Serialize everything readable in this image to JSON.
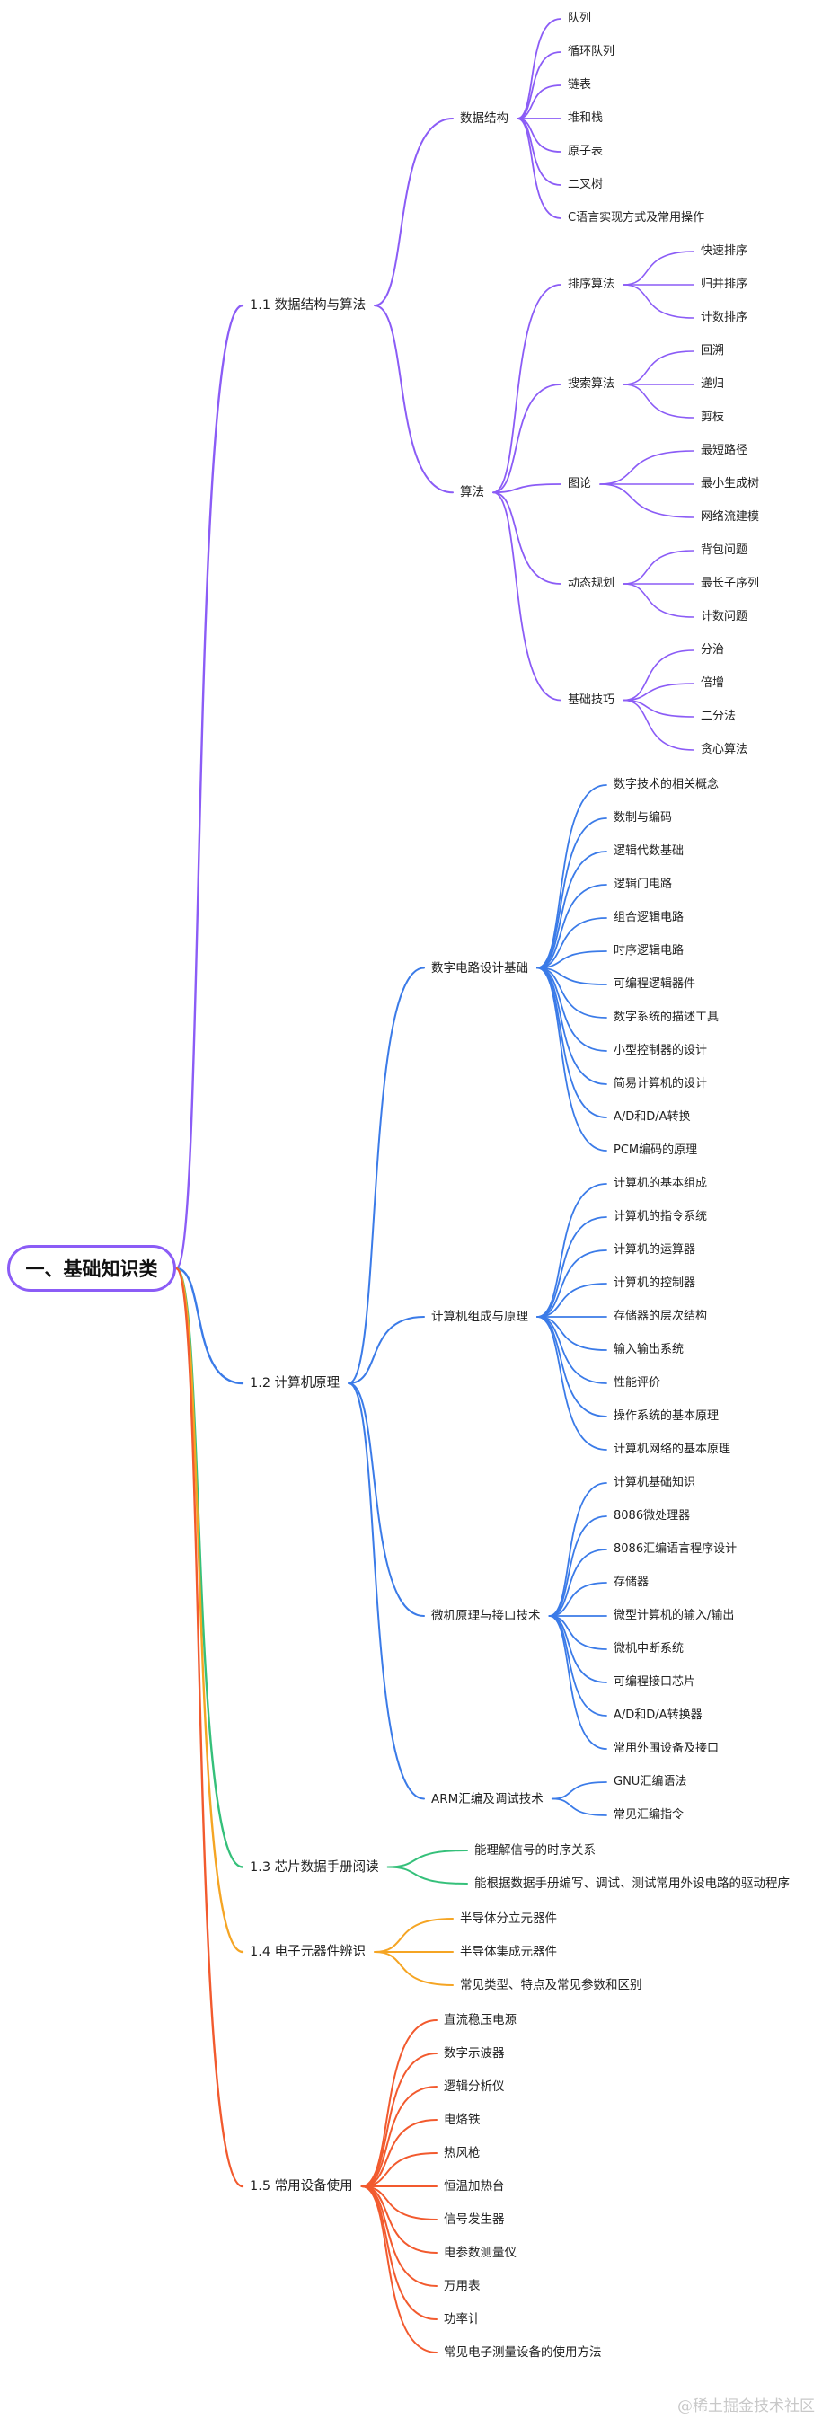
{
  "root": "一、基础知识类",
  "watermark": "@稀土掘金技术社区",
  "colors": {
    "purple": "#8b5cf6",
    "blue": "#3b7be8",
    "green": "#35c07a",
    "orange": "#f5a524",
    "red": "#f25a2e"
  },
  "sections": [
    {
      "label": "1.1 数据结构与算法",
      "color": "purple",
      "children": [
        {
          "label": "数据结构",
          "children": [
            {
              "label": "队列"
            },
            {
              "label": "循环队列"
            },
            {
              "label": "链表"
            },
            {
              "label": "堆和栈"
            },
            {
              "label": "原子表"
            },
            {
              "label": "二叉树"
            },
            {
              "label": "C语言实现方式及常用操作"
            }
          ]
        },
        {
          "label": "算法",
          "children": [
            {
              "label": "排序算法",
              "children": [
                {
                  "label": "快速排序"
                },
                {
                  "label": "归并排序"
                },
                {
                  "label": "计数排序"
                }
              ]
            },
            {
              "label": "搜索算法",
              "children": [
                {
                  "label": "回溯"
                },
                {
                  "label": "递归"
                },
                {
                  "label": "剪枝"
                }
              ]
            },
            {
              "label": "图论",
              "children": [
                {
                  "label": "最短路径"
                },
                {
                  "label": "最小生成树"
                },
                {
                  "label": "网络流建模"
                }
              ]
            },
            {
              "label": "动态规划",
              "children": [
                {
                  "label": "背包问题"
                },
                {
                  "label": "最长子序列"
                },
                {
                  "label": "计数问题"
                }
              ]
            },
            {
              "label": "基础技巧",
              "children": [
                {
                  "label": "分治"
                },
                {
                  "label": "倍增"
                },
                {
                  "label": "二分法"
                },
                {
                  "label": "贪心算法"
                }
              ]
            }
          ]
        }
      ]
    },
    {
      "label": "1.2 计算机原理",
      "color": "blue",
      "children": [
        {
          "label": "数字电路设计基础",
          "children": [
            {
              "label": "数字技术的相关概念"
            },
            {
              "label": "数制与编码"
            },
            {
              "label": "逻辑代数基础"
            },
            {
              "label": "逻辑门电路"
            },
            {
              "label": "组合逻辑电路"
            },
            {
              "label": "时序逻辑电路"
            },
            {
              "label": "可编程逻辑器件"
            },
            {
              "label": "数字系统的描述工具"
            },
            {
              "label": "小型控制器的设计"
            },
            {
              "label": "简易计算机的设计"
            },
            {
              "label": "A/D和D/A转换"
            },
            {
              "label": "PCM编码的原理"
            }
          ]
        },
        {
          "label": "计算机组成与原理",
          "children": [
            {
              "label": "计算机的基本组成"
            },
            {
              "label": "计算机的指令系统"
            },
            {
              "label": "计算机的运算器"
            },
            {
              "label": "计算机的控制器"
            },
            {
              "label": "存储器的层次结构"
            },
            {
              "label": "输入输出系统"
            },
            {
              "label": "性能评价"
            },
            {
              "label": "操作系统的基本原理"
            },
            {
              "label": "计算机网络的基本原理"
            }
          ]
        },
        {
          "label": "微机原理与接口技术",
          "children": [
            {
              "label": "计算机基础知识"
            },
            {
              "label": "8086微处理器"
            },
            {
              "label": "8086汇编语言程序设计"
            },
            {
              "label": "存储器"
            },
            {
              "label": "微型计算机的输入/输出"
            },
            {
              "label": "微机中断系统"
            },
            {
              "label": "可编程接口芯片"
            },
            {
              "label": "A/D和D/A转换器"
            },
            {
              "label": "常用外围设备及接口"
            }
          ]
        },
        {
          "label": "ARM汇编及调试技术",
          "children": [
            {
              "label": "GNU汇编语法"
            },
            {
              "label": "常见汇编指令"
            }
          ]
        }
      ]
    },
    {
      "label": "1.3 芯片数据手册阅读",
      "color": "green",
      "children": [
        {
          "label": "能理解信号的时序关系"
        },
        {
          "label": "能根据数据手册编写、调试、测试常用外设电路的驱动程序"
        }
      ]
    },
    {
      "label": "1.4 电子元器件辨识",
      "color": "orange",
      "children": [
        {
          "label": "半导体分立元器件"
        },
        {
          "label": "半导体集成元器件"
        },
        {
          "label": "常见类型、特点及常见参数和区别"
        }
      ]
    },
    {
      "label": "1.5 常用设备使用",
      "color": "red",
      "children": [
        {
          "label": "直流稳压电源"
        },
        {
          "label": "数字示波器"
        },
        {
          "label": "逻辑分析仪"
        },
        {
          "label": "电烙铁"
        },
        {
          "label": "热风枪"
        },
        {
          "label": "恒温加热台"
        },
        {
          "label": "信号发生器"
        },
        {
          "label": "电参数测量仪"
        },
        {
          "label": "万用表"
        },
        {
          "label": "功率计"
        },
        {
          "label": "常见电子测量设备的使用方法"
        }
      ]
    }
  ]
}
